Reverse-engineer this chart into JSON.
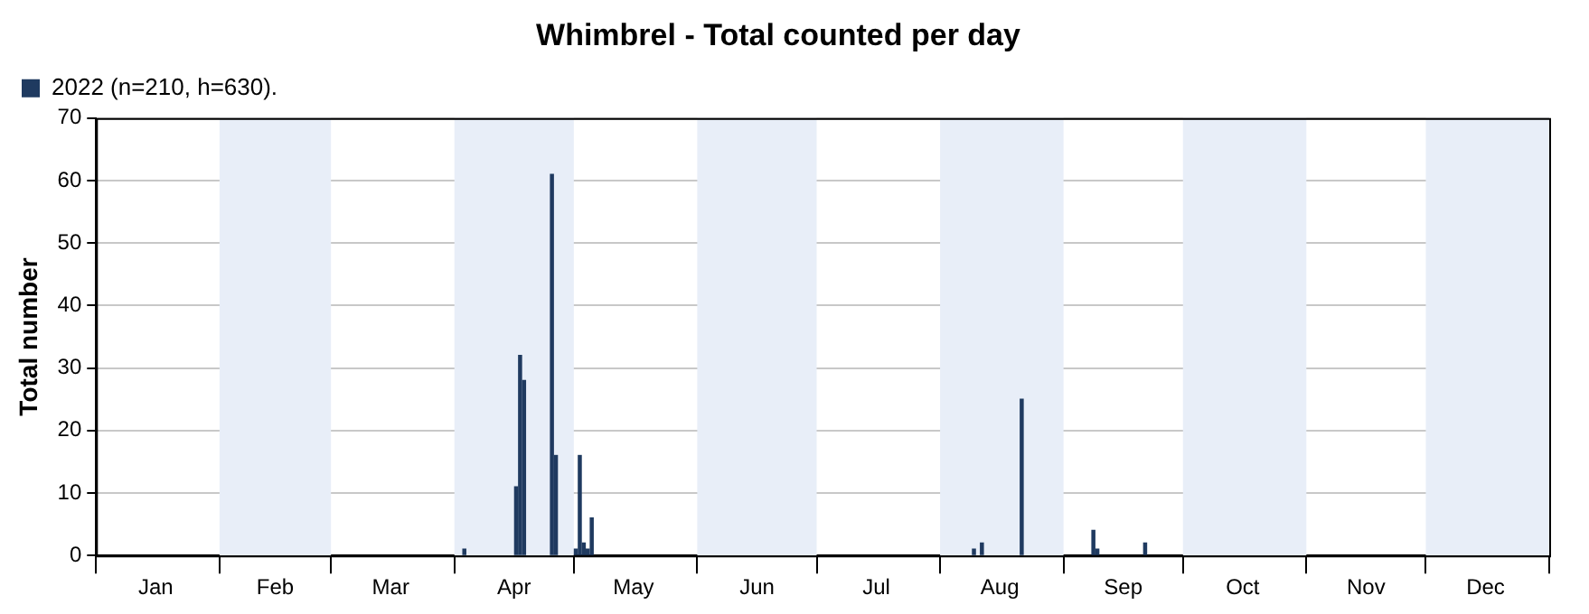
{
  "chart_data": {
    "type": "bar",
    "title": "Whimbrel - Total counted per day",
    "ylabel": "Total number",
    "x": [
      "2022-04-03",
      "2022-04-16",
      "2022-04-17",
      "2022-04-18",
      "2022-04-25",
      "2022-04-26",
      "2022-05-01",
      "2022-05-02",
      "2022-05-03",
      "2022-05-04",
      "2022-05-05",
      "2022-08-09",
      "2022-08-11",
      "2022-08-21",
      "2022-09-08",
      "2022-09-09",
      "2022-09-21"
    ],
    "series": [
      {
        "name": "2022 (n=210, h=630).",
        "color": "#1f3a60",
        "values": [
          1,
          11,
          32,
          28,
          61,
          16,
          1,
          16,
          2,
          1,
          6,
          1,
          2,
          25,
          4,
          1,
          2
        ]
      }
    ],
    "xlim": [
      "2022-01-01",
      "2023-01-01"
    ],
    "xticks": [
      {
        "value": "2022-01-01",
        "label": null
      },
      {
        "value": "2022-01-16",
        "label": "Jan"
      },
      {
        "value": "2022-02-01",
        "label": null
      },
      {
        "value": "2022-02-15",
        "label": "Feb"
      },
      {
        "value": "2022-03-01",
        "label": null
      },
      {
        "value": "2022-03-16",
        "label": "Mar"
      },
      {
        "value": "2022-04-01",
        "label": null
      },
      {
        "value": "2022-04-16",
        "label": "Apr"
      },
      {
        "value": "2022-05-01",
        "label": null
      },
      {
        "value": "2022-05-16",
        "label": "May"
      },
      {
        "value": "2022-06-01",
        "label": null
      },
      {
        "value": "2022-06-16",
        "label": "Jun"
      },
      {
        "value": "2022-07-01",
        "label": null
      },
      {
        "value": "2022-07-16",
        "label": "Jul"
      },
      {
        "value": "2022-08-01",
        "label": null
      },
      {
        "value": "2022-08-16",
        "label": "Aug"
      },
      {
        "value": "2022-09-01",
        "label": null
      },
      {
        "value": "2022-09-16",
        "label": "Sep"
      },
      {
        "value": "2022-10-01",
        "label": null
      },
      {
        "value": "2022-10-16",
        "label": "Oct"
      },
      {
        "value": "2022-11-01",
        "label": null
      },
      {
        "value": "2022-11-16",
        "label": "Nov"
      },
      {
        "value": "2022-12-01",
        "label": null
      },
      {
        "value": "2022-12-16",
        "label": "Dec"
      },
      {
        "value": "2023-01-01",
        "label": null
      }
    ],
    "ylim": [
      0,
      70
    ],
    "yticks": [
      0,
      10,
      20,
      30,
      40,
      50,
      60,
      70
    ],
    "grid": "y",
    "legend": "top left",
    "bands": [
      {
        "axis": "x",
        "from": "2022-02-01",
        "to": "2022-03-01",
        "color": "#e8eef8"
      },
      {
        "axis": "x",
        "from": "2022-04-01",
        "to": "2022-05-01",
        "color": "#e8eef8"
      },
      {
        "axis": "x",
        "from": "2022-06-01",
        "to": "2022-07-01",
        "color": "#e8eef8"
      },
      {
        "axis": "x",
        "from": "2022-08-01",
        "to": "2022-09-01",
        "color": "#e8eef8"
      },
      {
        "axis": "x",
        "from": "2022-10-01",
        "to": "2022-11-01",
        "color": "#e8eef8"
      },
      {
        "axis": "x",
        "from": "2022-12-01",
        "to": "2023-01-01",
        "color": "#e8eef8"
      }
    ]
  }
}
